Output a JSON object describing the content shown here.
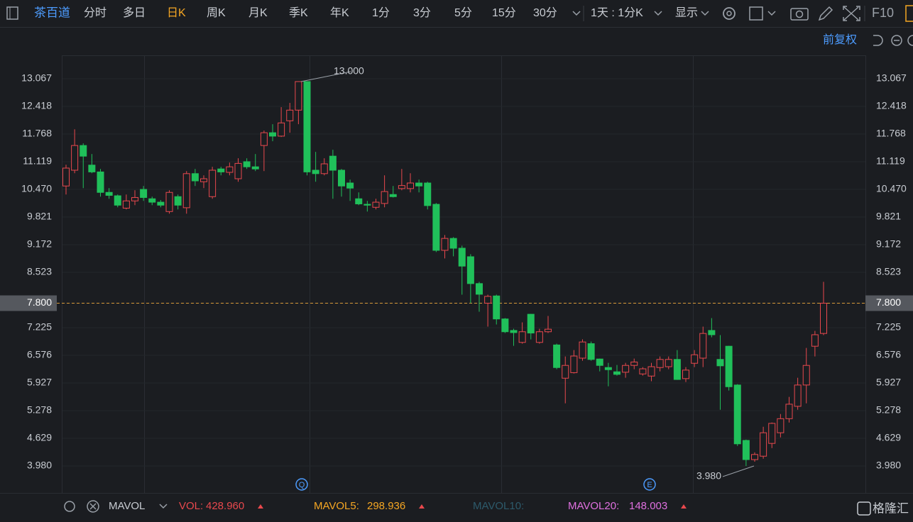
{
  "toolbar": {
    "symbol": "茶百道",
    "tabs": [
      "分时",
      "多日",
      "日K",
      "周K",
      "月K",
      "季K",
      "年K",
      "1分",
      "3分",
      "5分",
      "15分",
      "30分"
    ],
    "range": "1天 : 1分K",
    "display": "显示",
    "f10": "F10"
  },
  "adjust": "前复权",
  "events": [
    "Q",
    "E"
  ],
  "chart_data": {
    "type": "candlestick",
    "up_color": "#e8484d",
    "down_color": "#20c05a",
    "open": [
      10.55,
      10.92,
      11.5,
      11.04,
      10.88,
      10.4,
      10.32,
      10.03,
      10.2,
      10.47,
      10.25,
      10.17,
      9.95,
      10.3,
      10.04,
      10.84,
      10.65,
      10.3,
      10.95,
      10.87,
      10.72,
      11.12,
      11.0,
      11.5,
      11.8,
      11.72,
      12.08,
      12.33,
      13.0,
      10.92,
      10.84,
      11.25,
      10.92,
      10.62,
      10.25,
      10.12,
      10.05,
      10.14,
      10.35,
      10.49,
      10.49,
      10.62,
      10.62,
      10.12,
      9.04,
      9.32,
      9.09,
      8.89,
      8.26,
      7.8,
      7.97,
      7.43,
      7.16,
      6.88,
      7.54,
      6.88,
      7.13,
      6.82,
      6.04,
      6.17,
      6.51,
      6.85,
      6.49,
      6.29,
      6.19,
      6.18,
      6.34,
      6.14,
      6.09,
      6.29,
      6.31,
      6.48,
      6.03,
      6.39,
      6.51,
      7.16,
      6.48,
      6.79,
      5.88,
      4.58,
      4.13,
      4.21,
      4.51,
      4.76,
      5.09,
      5.38,
      5.88,
      6.79,
      7.09
    ],
    "high": [
      11.05,
      11.88,
      11.55,
      11.3,
      10.95,
      10.5,
      10.35,
      10.35,
      10.45,
      10.55,
      10.3,
      10.22,
      10.45,
      10.35,
      10.9,
      10.95,
      10.8,
      11.0,
      11.0,
      11.1,
      11.2,
      11.2,
      11.3,
      11.85,
      12.0,
      12.4,
      12.5,
      13.0,
      13.0,
      11.35,
      11.2,
      11.4,
      10.95,
      10.7,
      10.4,
      10.2,
      10.25,
      10.8,
      10.55,
      10.95,
      10.85,
      10.7,
      10.65,
      10.15,
      9.4,
      9.35,
      9.15,
      8.95,
      8.3,
      8.0,
      8.0,
      7.45,
      7.2,
      7.35,
      7.55,
      7.2,
      7.5,
      6.85,
      6.55,
      6.7,
      6.95,
      6.9,
      6.5,
      6.4,
      6.35,
      6.4,
      6.5,
      6.3,
      6.4,
      6.55,
      6.55,
      6.7,
      6.3,
      6.7,
      7.25,
      7.45,
      7.05,
      6.8,
      5.9,
      4.6,
      4.3,
      4.9,
      5.0,
      5.2,
      5.6,
      6.05,
      6.75,
      7.15,
      8.3
    ],
    "low": [
      10.35,
      10.85,
      10.5,
      10.85,
      10.3,
      10.25,
      10.05,
      10.0,
      10.1,
      10.2,
      10.1,
      10.05,
      9.9,
      10.0,
      9.9,
      10.55,
      10.5,
      10.25,
      10.8,
      10.8,
      10.65,
      10.95,
      10.9,
      10.9,
      11.6,
      11.7,
      11.8,
      12.0,
      10.8,
      10.65,
      10.8,
      10.25,
      10.3,
      10.2,
      10.1,
      9.95,
      10.0,
      10.05,
      10.28,
      10.45,
      10.4,
      10.4,
      10.0,
      9.0,
      8.85,
      8.9,
      8.0,
      7.8,
      7.6,
      7.25,
      7.3,
      7.1,
      6.8,
      6.85,
      6.95,
      6.85,
      7.1,
      6.25,
      5.45,
      6.15,
      6.45,
      6.45,
      6.2,
      5.85,
      6.1,
      6.05,
      6.25,
      6.1,
      5.97,
      6.2,
      6.25,
      6.0,
      5.95,
      6.3,
      6.3,
      7.0,
      5.3,
      5.75,
      4.45,
      3.98,
      4.08,
      4.15,
      4.4,
      4.65,
      5.0,
      5.3,
      5.45,
      6.55,
      7.05
    ],
    "close": [
      10.97,
      11.5,
      11.25,
      10.88,
      10.4,
      10.33,
      10.1,
      10.2,
      10.28,
      10.28,
      10.17,
      10.1,
      10.4,
      10.1,
      10.84,
      10.67,
      10.72,
      10.92,
      10.88,
      11.0,
      11.08,
      11.0,
      10.95,
      11.8,
      11.72,
      12.03,
      12.33,
      13.0,
      10.88,
      10.84,
      11.07,
      10.92,
      10.55,
      10.5,
      10.13,
      10.1,
      10.17,
      10.42,
      10.3,
      10.56,
      10.62,
      10.55,
      10.09,
      9.04,
      9.32,
      9.09,
      8.67,
      8.26,
      8.01,
      7.96,
      7.43,
      7.13,
      7.11,
      7.13,
      7.1,
      7.13,
      7.19,
      6.29,
      6.34,
      6.56,
      6.89,
      6.48,
      6.34,
      6.24,
      6.13,
      6.34,
      6.42,
      6.26,
      6.31,
      6.48,
      6.48,
      6.01,
      6.23,
      6.59,
      7.09,
      7.06,
      6.33,
      5.84,
      4.5,
      4.13,
      4.25,
      4.76,
      4.98,
      5.09,
      5.43,
      5.88,
      6.34,
      7.06,
      7.8
    ],
    "ylim": [
      3.348,
      13.616
    ],
    "yticks": [
      13.067,
      12.418,
      11.768,
      11.119,
      {
        "value": 10.47,
        "label": "10.470"
      },
      9.821,
      9.172,
      8.523,
      {
        "value": 7.8,
        "label": "7.800"
      },
      7.225,
      6.576,
      5.927,
      5.278,
      4.629,
      {
        "value": 3.98,
        "label": "3.980"
      }
    ],
    "last_price": {
      "value": 7.8,
      "label": "7.800"
    },
    "annotations": [
      {
        "label": "13.000",
        "value": 13
      },
      {
        "label": "3.980",
        "value": 3.98
      }
    ],
    "grid": true
  },
  "indicator": {
    "name": "MAVOL",
    "items": [
      {
        "label": "VOL:",
        "value": "428.960"
      },
      {
        "label": "MAVOL5:",
        "value": "298.936"
      },
      {
        "label": "MAVOL10:"
      },
      {
        "label": "MAVOL20:",
        "value": "148.003"
      }
    ]
  },
  "watermark": "格隆汇"
}
